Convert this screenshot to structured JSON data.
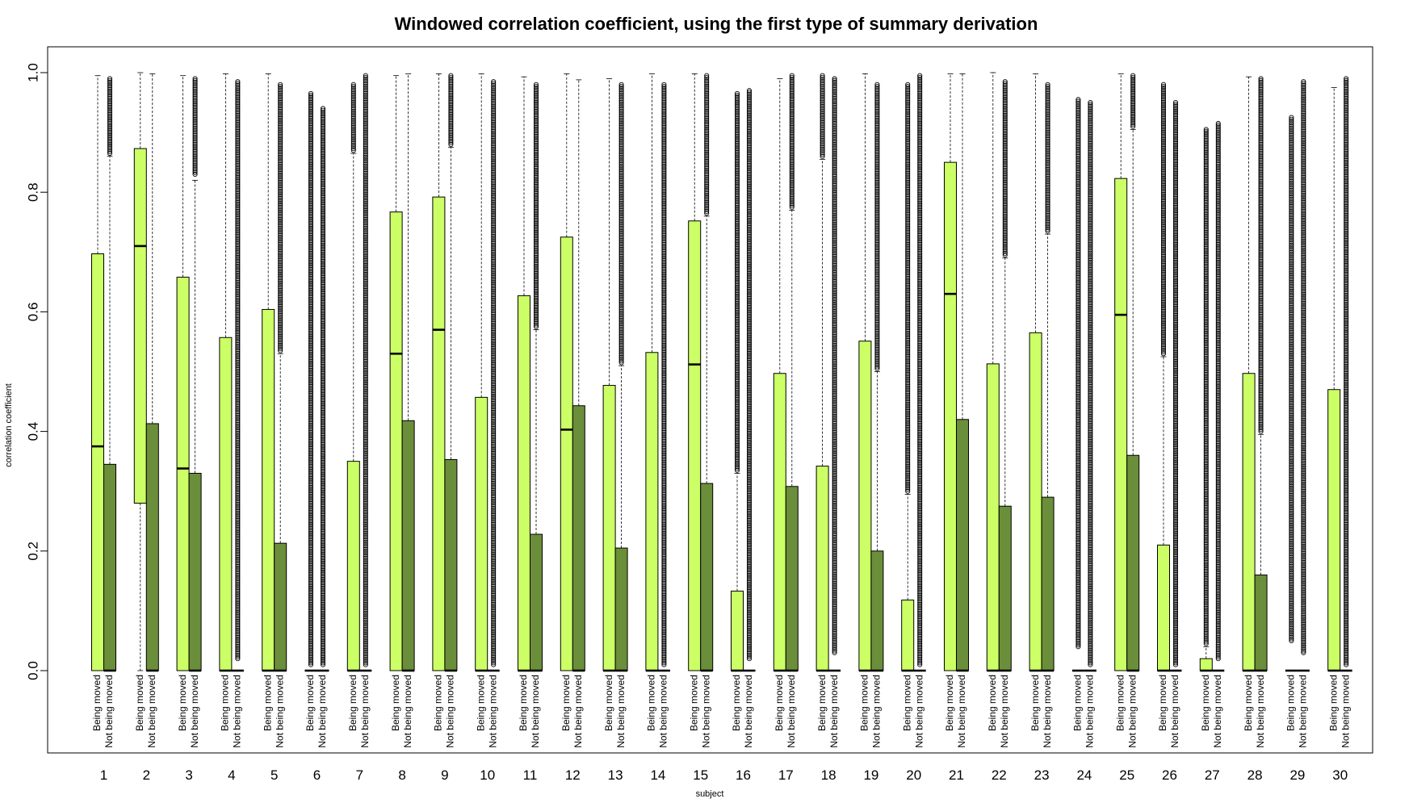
{
  "chart_data": {
    "type": "boxplot",
    "title": "Windowed correlation coefficient, using the first type of summary derivation",
    "xlabel": "subject",
    "ylabel": "correlation coefficient",
    "ylim": [
      -0.14,
      1.05
    ],
    "yticks": [
      0.0,
      0.2,
      0.4,
      0.6,
      0.8,
      1.0
    ],
    "ytick_labels": [
      "0.0",
      "0.2",
      "0.4",
      "0.6",
      "0.8",
      "1.0"
    ],
    "grid": false,
    "box_labels": [
      "Being moved",
      "Not being moved"
    ],
    "colors": {
      "Being moved": "#ccff66",
      "Not being moved": "#6b8e3a",
      "outline": "#000000"
    },
    "subjects": [
      {
        "label": "1",
        "moved": {
          "q1": 0,
          "median": 0.375,
          "q3": 0.697,
          "wtop": 0.995
        },
        "notmoved": {
          "q1": 0,
          "median": 0,
          "q3": 0.345,
          "wtop": 0.86,
          "omin": 0.865,
          "omax": 0.99
        }
      },
      {
        "label": "2",
        "moved": {
          "q1": 0.28,
          "median": 0.71,
          "q3": 0.873,
          "wtop": 1.0,
          "wbot": 0.0
        },
        "notmoved": {
          "q1": 0,
          "median": 0,
          "q3": 0.413,
          "wtop": 0.998
        }
      },
      {
        "label": "3",
        "moved": {
          "q1": 0,
          "median": 0.338,
          "q3": 0.658,
          "wtop": 0.995
        },
        "notmoved": {
          "q1": 0,
          "median": 0,
          "q3": 0.33,
          "wtop": 0.82,
          "omin": 0.83,
          "omax": 0.99
        }
      },
      {
        "label": "4",
        "moved": {
          "q1": 0,
          "median": 0,
          "q3": 0.557,
          "wtop": 0.998
        },
        "notmoved": {
          "q1": 0,
          "median": 0,
          "q3": 0,
          "wtop": 0,
          "omin": 0.02,
          "omax": 0.985
        }
      },
      {
        "label": "5",
        "moved": {
          "q1": 0,
          "median": 0,
          "q3": 0.604,
          "wtop": 0.998
        },
        "notmoved": {
          "q1": 0,
          "median": 0,
          "q3": 0.213,
          "wtop": 0.53,
          "omin": 0.535,
          "omax": 0.98
        }
      },
      {
        "label": "6",
        "moved": {
          "q1": 0,
          "median": 0,
          "q3": 0,
          "wtop": 0,
          "omin": 0.01,
          "omax": 0.965
        },
        "notmoved": {
          "q1": 0,
          "median": 0,
          "q3": 0,
          "wtop": 0,
          "omin": 0.01,
          "omax": 0.94
        }
      },
      {
        "label": "7",
        "moved": {
          "q1": 0,
          "median": 0,
          "q3": 0.35,
          "wtop": 0.865,
          "omin": 0.87,
          "omax": 0.98
        },
        "notmoved": {
          "q1": 0,
          "median": 0,
          "q3": 0,
          "wtop": 0,
          "omin": 0.01,
          "omax": 0.995
        }
      },
      {
        "label": "8",
        "moved": {
          "q1": 0,
          "median": 0.53,
          "q3": 0.767,
          "wtop": 0.995
        },
        "notmoved": {
          "q1": 0,
          "median": 0,
          "q3": 0.418,
          "wtop": 0.998
        }
      },
      {
        "label": "9",
        "moved": {
          "q1": 0,
          "median": 0.57,
          "q3": 0.792,
          "wtop": 0.998
        },
        "notmoved": {
          "q1": 0,
          "median": 0,
          "q3": 0.353,
          "wtop": 0.875,
          "omin": 0.88,
          "omax": 0.995
        }
      },
      {
        "label": "10",
        "moved": {
          "q1": 0,
          "median": 0,
          "q3": 0.457,
          "wtop": 0.998
        },
        "notmoved": {
          "q1": 0,
          "median": 0,
          "q3": 0,
          "wtop": 0,
          "omin": 0.01,
          "omax": 0.985
        }
      },
      {
        "label": "11",
        "moved": {
          "q1": 0,
          "median": 0,
          "q3": 0.627,
          "wtop": 0.993
        },
        "notmoved": {
          "q1": 0,
          "median": 0,
          "q3": 0.228,
          "wtop": 0.57,
          "omin": 0.575,
          "omax": 0.98
        }
      },
      {
        "label": "12",
        "moved": {
          "q1": 0,
          "median": 0.403,
          "q3": 0.725,
          "wtop": 0.998
        },
        "notmoved": {
          "q1": 0,
          "median": 0,
          "q3": 0.443,
          "wtop": 0.988
        }
      },
      {
        "label": "13",
        "moved": {
          "q1": 0,
          "median": 0,
          "q3": 0.477,
          "wtop": 0.99
        },
        "notmoved": {
          "q1": 0,
          "median": 0,
          "q3": 0.205,
          "wtop": 0.51,
          "omin": 0.515,
          "omax": 0.98
        }
      },
      {
        "label": "14",
        "moved": {
          "q1": 0,
          "median": 0,
          "q3": 0.532,
          "wtop": 0.998
        },
        "notmoved": {
          "q1": 0,
          "median": 0,
          "q3": 0,
          "wtop": 0,
          "omin": 0.01,
          "omax": 0.98
        }
      },
      {
        "label": "15",
        "moved": {
          "q1": 0,
          "median": 0.512,
          "q3": 0.752,
          "wtop": 0.998
        },
        "notmoved": {
          "q1": 0,
          "median": 0,
          "q3": 0.313,
          "wtop": 0.76,
          "omin": 0.765,
          "omax": 0.995
        }
      },
      {
        "label": "16",
        "moved": {
          "q1": 0,
          "median": 0,
          "q3": 0.133,
          "wtop": 0.33,
          "omin": 0.335,
          "omax": 0.965
        },
        "notmoved": {
          "q1": 0,
          "median": 0,
          "q3": 0,
          "wtop": 0,
          "omin": 0.02,
          "omax": 0.97
        }
      },
      {
        "label": "17",
        "moved": {
          "q1": 0,
          "median": 0,
          "q3": 0.497,
          "wtop": 0.99
        },
        "notmoved": {
          "q1": 0,
          "median": 0,
          "q3": 0.308,
          "wtop": 0.77,
          "omin": 0.775,
          "omax": 0.995
        }
      },
      {
        "label": "18",
        "moved": {
          "q1": 0,
          "median": 0,
          "q3": 0.342,
          "wtop": 0.855,
          "omin": 0.86,
          "omax": 0.995
        },
        "notmoved": {
          "q1": 0,
          "median": 0,
          "q3": 0,
          "wtop": 0,
          "omin": 0.03,
          "omax": 0.99
        }
      },
      {
        "label": "19",
        "moved": {
          "q1": 0,
          "median": 0,
          "q3": 0.551,
          "wtop": 0.998
        },
        "notmoved": {
          "q1": 0,
          "median": 0,
          "q3": 0.2,
          "wtop": 0.5,
          "omin": 0.505,
          "omax": 0.98
        }
      },
      {
        "label": "20",
        "moved": {
          "q1": 0,
          "median": 0,
          "q3": 0.118,
          "wtop": 0.295,
          "omin": 0.3,
          "omax": 0.98
        },
        "notmoved": {
          "q1": 0,
          "median": 0,
          "q3": 0,
          "wtop": 0,
          "omin": 0.01,
          "omax": 0.995
        }
      },
      {
        "label": "21",
        "moved": {
          "q1": 0,
          "median": 0.63,
          "q3": 0.85,
          "wtop": 0.998
        },
        "notmoved": {
          "q1": 0,
          "median": 0,
          "q3": 0.42,
          "wtop": 0.998
        }
      },
      {
        "label": "22",
        "moved": {
          "q1": 0,
          "median": 0,
          "q3": 0.513,
          "wtop": 1.0
        },
        "notmoved": {
          "q1": 0,
          "median": 0,
          "q3": 0.275,
          "wtop": 0.69,
          "omin": 0.695,
          "omax": 0.985
        }
      },
      {
        "label": "23",
        "moved": {
          "q1": 0,
          "median": 0,
          "q3": 0.565,
          "wtop": 0.998
        },
        "notmoved": {
          "q1": 0,
          "median": 0,
          "q3": 0.29,
          "wtop": 0.73,
          "omin": 0.735,
          "omax": 0.98
        }
      },
      {
        "label": "24",
        "moved": {
          "q1": 0,
          "median": 0,
          "q3": 0,
          "wtop": 0,
          "omin": 0.04,
          "omax": 0.955
        },
        "notmoved": {
          "q1": 0,
          "median": 0,
          "q3": 0,
          "wtop": 0,
          "omin": 0.01,
          "omax": 0.95
        }
      },
      {
        "label": "25",
        "moved": {
          "q1": 0,
          "median": 0.595,
          "q3": 0.823,
          "wtop": 0.998
        },
        "notmoved": {
          "q1": 0,
          "median": 0,
          "q3": 0.36,
          "wtop": 0.905,
          "omin": 0.91,
          "omax": 0.995
        }
      },
      {
        "label": "26",
        "moved": {
          "q1": 0,
          "median": 0,
          "q3": 0.21,
          "wtop": 0.525,
          "omin": 0.53,
          "omax": 0.98
        },
        "notmoved": {
          "q1": 0,
          "median": 0,
          "q3": 0,
          "wtop": 0,
          "omin": 0.01,
          "omax": 0.95
        }
      },
      {
        "label": "27",
        "moved": {
          "q1": 0,
          "median": 0,
          "q3": 0.02,
          "wtop": 0.04,
          "omin": 0.045,
          "omax": 0.905
        },
        "notmoved": {
          "q1": 0,
          "median": 0,
          "q3": 0,
          "wtop": 0,
          "omin": 0.02,
          "omax": 0.915
        }
      },
      {
        "label": "28",
        "moved": {
          "q1": 0,
          "median": 0,
          "q3": 0.497,
          "wtop": 0.993
        },
        "notmoved": {
          "q1": 0,
          "median": 0,
          "q3": 0.16,
          "wtop": 0.395,
          "omin": 0.4,
          "omax": 0.99
        }
      },
      {
        "label": "29",
        "moved": {
          "q1": 0,
          "median": 0,
          "q3": 0,
          "wtop": 0,
          "omin": 0.05,
          "omax": 0.925
        },
        "notmoved": {
          "q1": 0,
          "median": 0,
          "q3": 0,
          "wtop": 0,
          "omin": 0.03,
          "omax": 0.985
        }
      },
      {
        "label": "30",
        "moved": {
          "q1": 0,
          "median": 0,
          "q3": 0.47,
          "wtop": 0.975
        },
        "notmoved": {
          "q1": 0,
          "median": 0,
          "q3": 0,
          "wtop": 0,
          "omin": 0.01,
          "omax": 0.99
        }
      }
    ]
  }
}
